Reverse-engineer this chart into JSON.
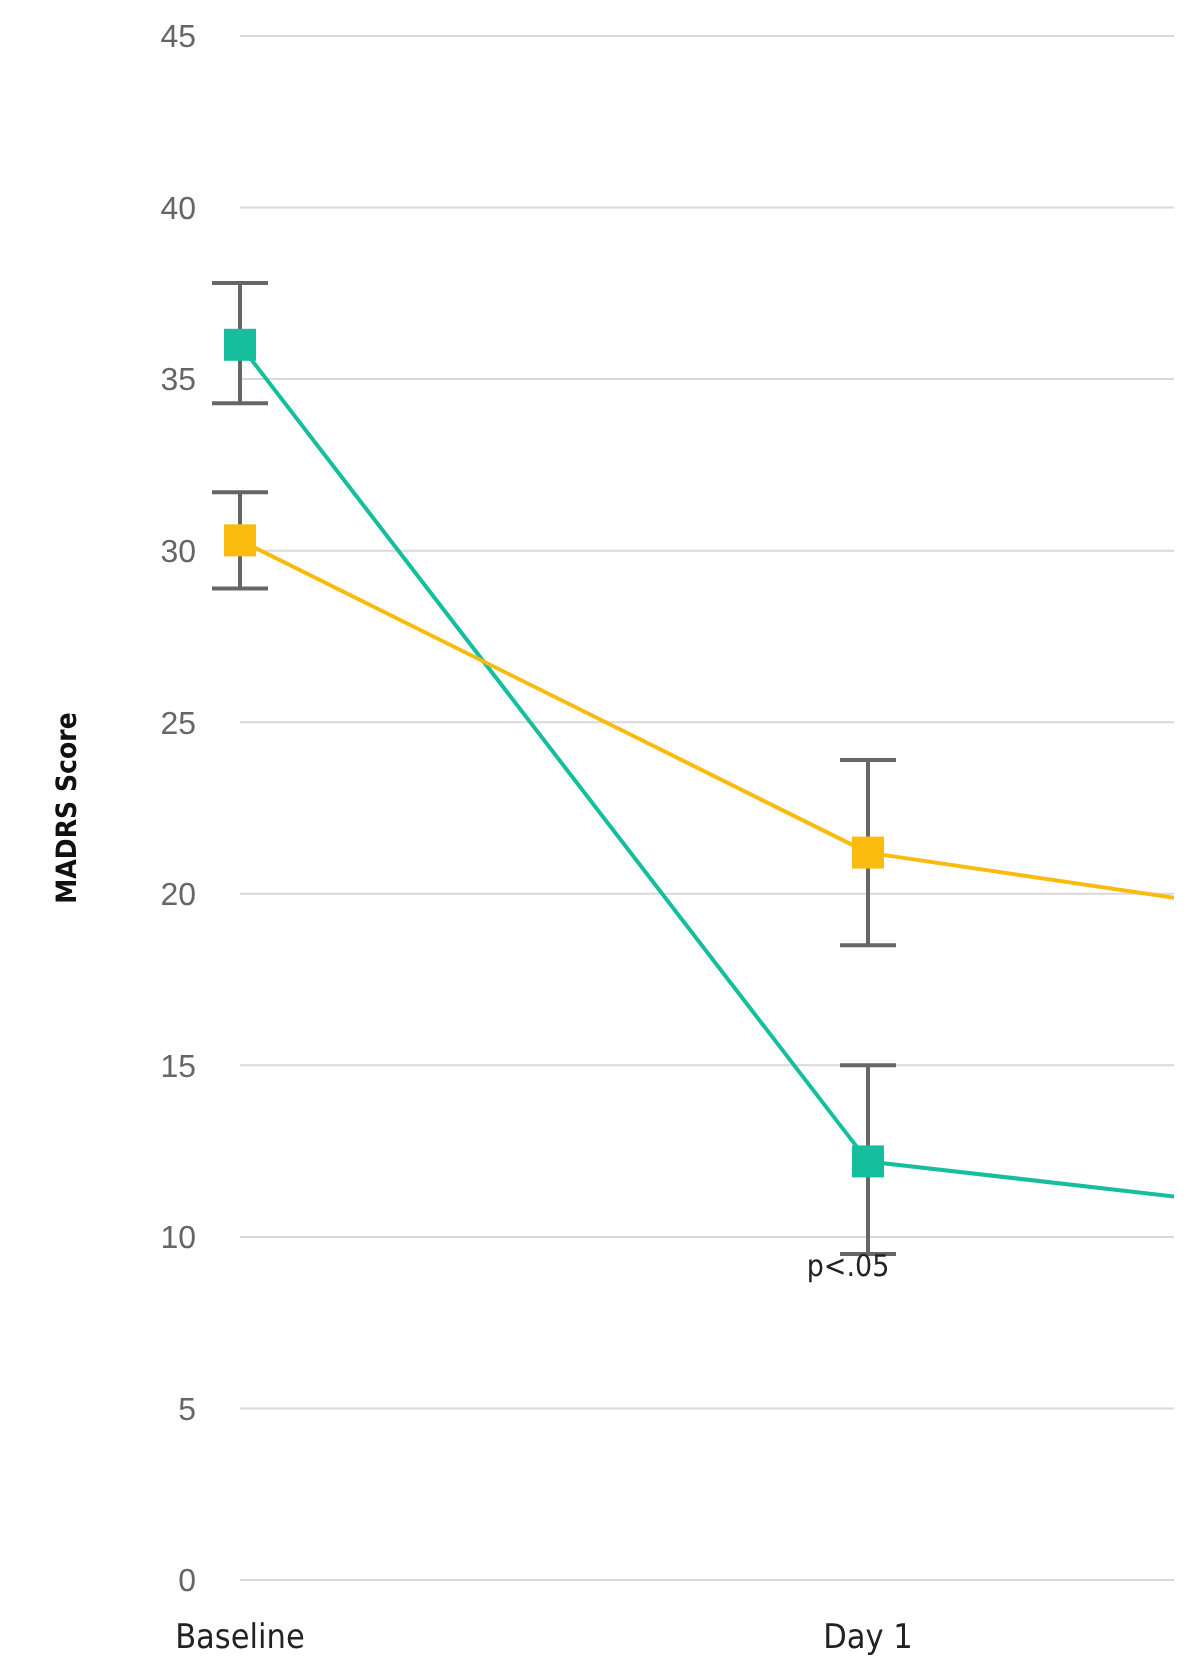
{
  "chart_data": {
    "type": "line",
    "ylabel": "MADRS Score",
    "categories": [
      "Baseline",
      "Day 1",
      null
    ],
    "series": [
      {
        "color": "#15bf9e",
        "values": [
          36.0,
          12.2,
          10.1
        ],
        "errors": [
          [
            34.3,
            37.8
          ],
          [
            9.5,
            15.0
          ],
          null
        ]
      },
      {
        "color": "#fbbb0e",
        "values": [
          30.3,
          21.2,
          18.5
        ],
        "errors": [
          [
            28.9,
            31.7
          ],
          [
            18.5,
            23.9
          ],
          null
        ]
      }
    ],
    "ylim": [
      0,
      45
    ],
    "yticks": [
      0,
      5,
      10,
      15,
      20,
      25,
      30,
      35,
      40,
      45
    ],
    "grid": "y",
    "marker": "square",
    "line_style": "solid",
    "annotations": [
      "p<.05"
    ]
  }
}
